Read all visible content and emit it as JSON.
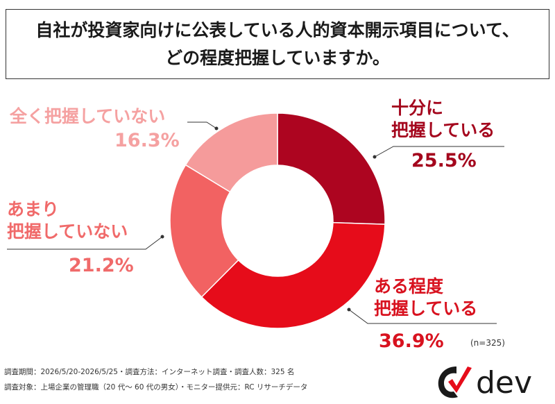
{
  "title": {
    "line1": "自社が投資家向けに公表している人的資本開示項目について、",
    "line2": "どの程度把握していますか。"
  },
  "chart_data": {
    "type": "pie",
    "variant": "donut",
    "n_label": "(n=325)",
    "slices": [
      {
        "label_line1": "十分に",
        "label_line2": "把握している",
        "value": 25.5,
        "value_text": "25.5%",
        "color": "#ad0520",
        "text_color": "#a4061d"
      },
      {
        "label_line1": "ある程度",
        "label_line2": "把握している",
        "value": 36.9,
        "value_text": "36.9%",
        "color": "#e60c1a",
        "text_color": "#d8121f"
      },
      {
        "label_line1": "あまり",
        "label_line2": "把握していない",
        "value": 21.2,
        "value_text": "21.2%",
        "color": "#f26262",
        "text_color": "#f06a6a"
      },
      {
        "label_line1": "全く把握していない",
        "label_line2": "",
        "value": 16.3,
        "value_text": "16.3%",
        "color": "#f59b9b",
        "text_color": "#f5a1a1"
      }
    ]
  },
  "footer": {
    "line1": "調査期間：2026/5/20-2026/5/25・調査方法：インターネット調査・調査人数：325 名",
    "line2": "調査対象：上場企業の管理職（20 代～ 60 代の男女）・モニター提供元：RC リサーチデータ"
  },
  "logo": {
    "text": "dev",
    "color": "#1a1a1a",
    "accent": "#e60c1a"
  }
}
